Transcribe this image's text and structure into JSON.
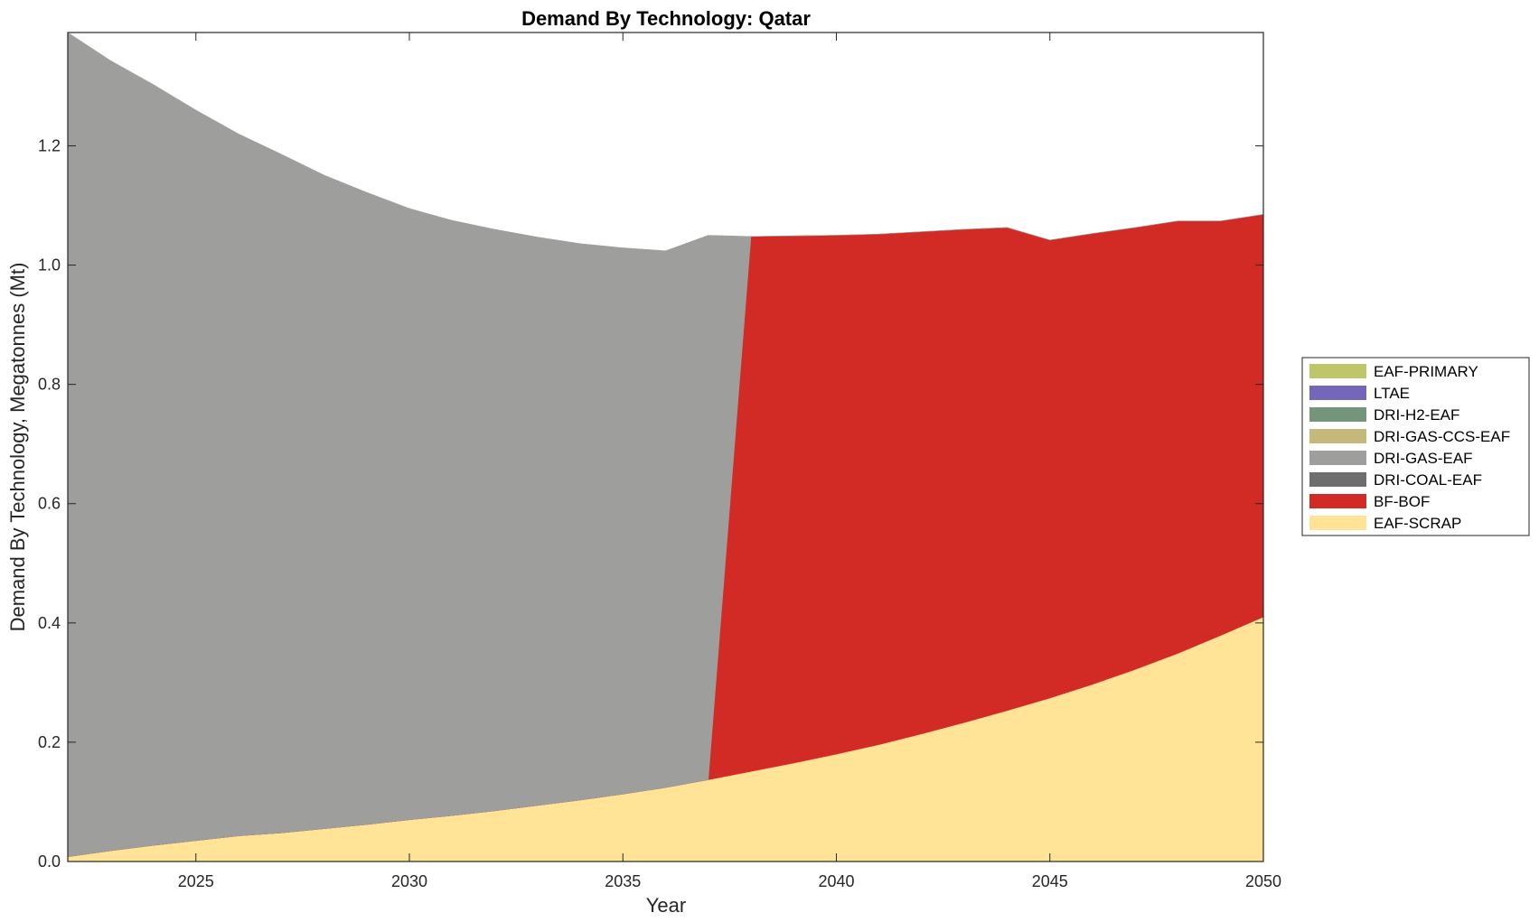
{
  "chart_data": {
    "type": "area",
    "stacked": true,
    "title": "Demand By Technology: Qatar",
    "xlabel": "Year",
    "ylabel": "Demand By Technology, Megatonnes (Mt)",
    "xlim": [
      2022,
      2050
    ],
    "ylim": [
      0,
      1.39
    ],
    "xticks": [
      "2025",
      "2030",
      "2035",
      "2040",
      "2045",
      "2050"
    ],
    "yticks": [
      "0.0",
      "0.2",
      "0.4",
      "0.6",
      "0.8",
      "1.0",
      "1.2"
    ],
    "grid": false,
    "legend_position": "right",
    "legend": [
      "EAF-PRIMARY",
      "LTAE",
      "DRI-H2-EAF",
      "DRI-GAS-CCS-EAF",
      "DRI-GAS-EAF",
      "DRI-COAL-EAF",
      "BF-BOF",
      "EAF-SCRAP"
    ],
    "x": [
      2022,
      2023,
      2024,
      2025,
      2026,
      2027,
      2028,
      2029,
      2030,
      2031,
      2032,
      2033,
      2034,
      2035,
      2036,
      2037,
      2038,
      2039,
      2040,
      2041,
      2042,
      2043,
      2044,
      2045,
      2046,
      2047,
      2048,
      2049,
      2050
    ],
    "series": [
      {
        "name": "EAF-SCRAP",
        "color": "#FFE396",
        "values": [
          0.008,
          0.018,
          0.027,
          0.035,
          0.043,
          0.048,
          0.055,
          0.062,
          0.07,
          0.077,
          0.085,
          0.094,
          0.103,
          0.113,
          0.124,
          0.137,
          0.151,
          0.165,
          0.18,
          0.196,
          0.214,
          0.233,
          0.253,
          0.274,
          0.297,
          0.322,
          0.349,
          0.379,
          0.41
        ]
      },
      {
        "name": "BF-BOF",
        "color": "#D22B25",
        "values": [
          0,
          0,
          0,
          0,
          0,
          0,
          0,
          0,
          0,
          0,
          0,
          0,
          0,
          0,
          0,
          0,
          0.897,
          0.884,
          0.87,
          0.856,
          0.842,
          0.827,
          0.81,
          0.768,
          0.756,
          0.741,
          0.725,
          0.695,
          0.675
        ]
      },
      {
        "name": "DRI-COAL-EAF",
        "color": "#6E6E6E",
        "values": [
          0,
          0,
          0,
          0,
          0,
          0,
          0,
          0,
          0,
          0,
          0,
          0,
          0,
          0,
          0,
          0,
          0,
          0,
          0,
          0,
          0,
          0,
          0,
          0,
          0,
          0,
          0,
          0,
          0
        ]
      },
      {
        "name": "DRI-GAS-EAF",
        "color": "#9E9E9C",
        "values": [
          1.382,
          1.325,
          1.276,
          1.225,
          1.177,
          1.138,
          1.096,
          1.06,
          1.025,
          0.998,
          0.975,
          0.953,
          0.933,
          0.916,
          0.9,
          0.913,
          0,
          0,
          0,
          0,
          0,
          0,
          0,
          0,
          0,
          0,
          0,
          0,
          0
        ]
      },
      {
        "name": "DRI-GAS-CCS-EAF",
        "color": "#C4B87A",
        "values": [
          0,
          0,
          0,
          0,
          0,
          0,
          0,
          0,
          0,
          0,
          0,
          0,
          0,
          0,
          0,
          0,
          0,
          0,
          0,
          0,
          0,
          0,
          0,
          0,
          0,
          0,
          0,
          0,
          0
        ]
      },
      {
        "name": "DRI-H2-EAF",
        "color": "#73957A",
        "values": [
          0,
          0,
          0,
          0,
          0,
          0,
          0,
          0,
          0,
          0,
          0,
          0,
          0,
          0,
          0,
          0,
          0,
          0,
          0,
          0,
          0,
          0,
          0,
          0,
          0,
          0,
          0,
          0,
          0
        ]
      },
      {
        "name": "LTAE",
        "color": "#7467BA",
        "values": [
          0,
          0,
          0,
          0,
          0,
          0,
          0,
          0,
          0,
          0,
          0,
          0,
          0,
          0,
          0,
          0,
          0,
          0,
          0,
          0,
          0,
          0,
          0,
          0,
          0,
          0,
          0,
          0,
          0
        ]
      },
      {
        "name": "EAF-PRIMARY",
        "color": "#BFC66A",
        "values": [
          0,
          0,
          0,
          0,
          0,
          0,
          0,
          0,
          0,
          0,
          0,
          0,
          0,
          0,
          0,
          0,
          0,
          0,
          0,
          0,
          0,
          0,
          0,
          0,
          0,
          0,
          0,
          0,
          0
        ]
      }
    ]
  }
}
